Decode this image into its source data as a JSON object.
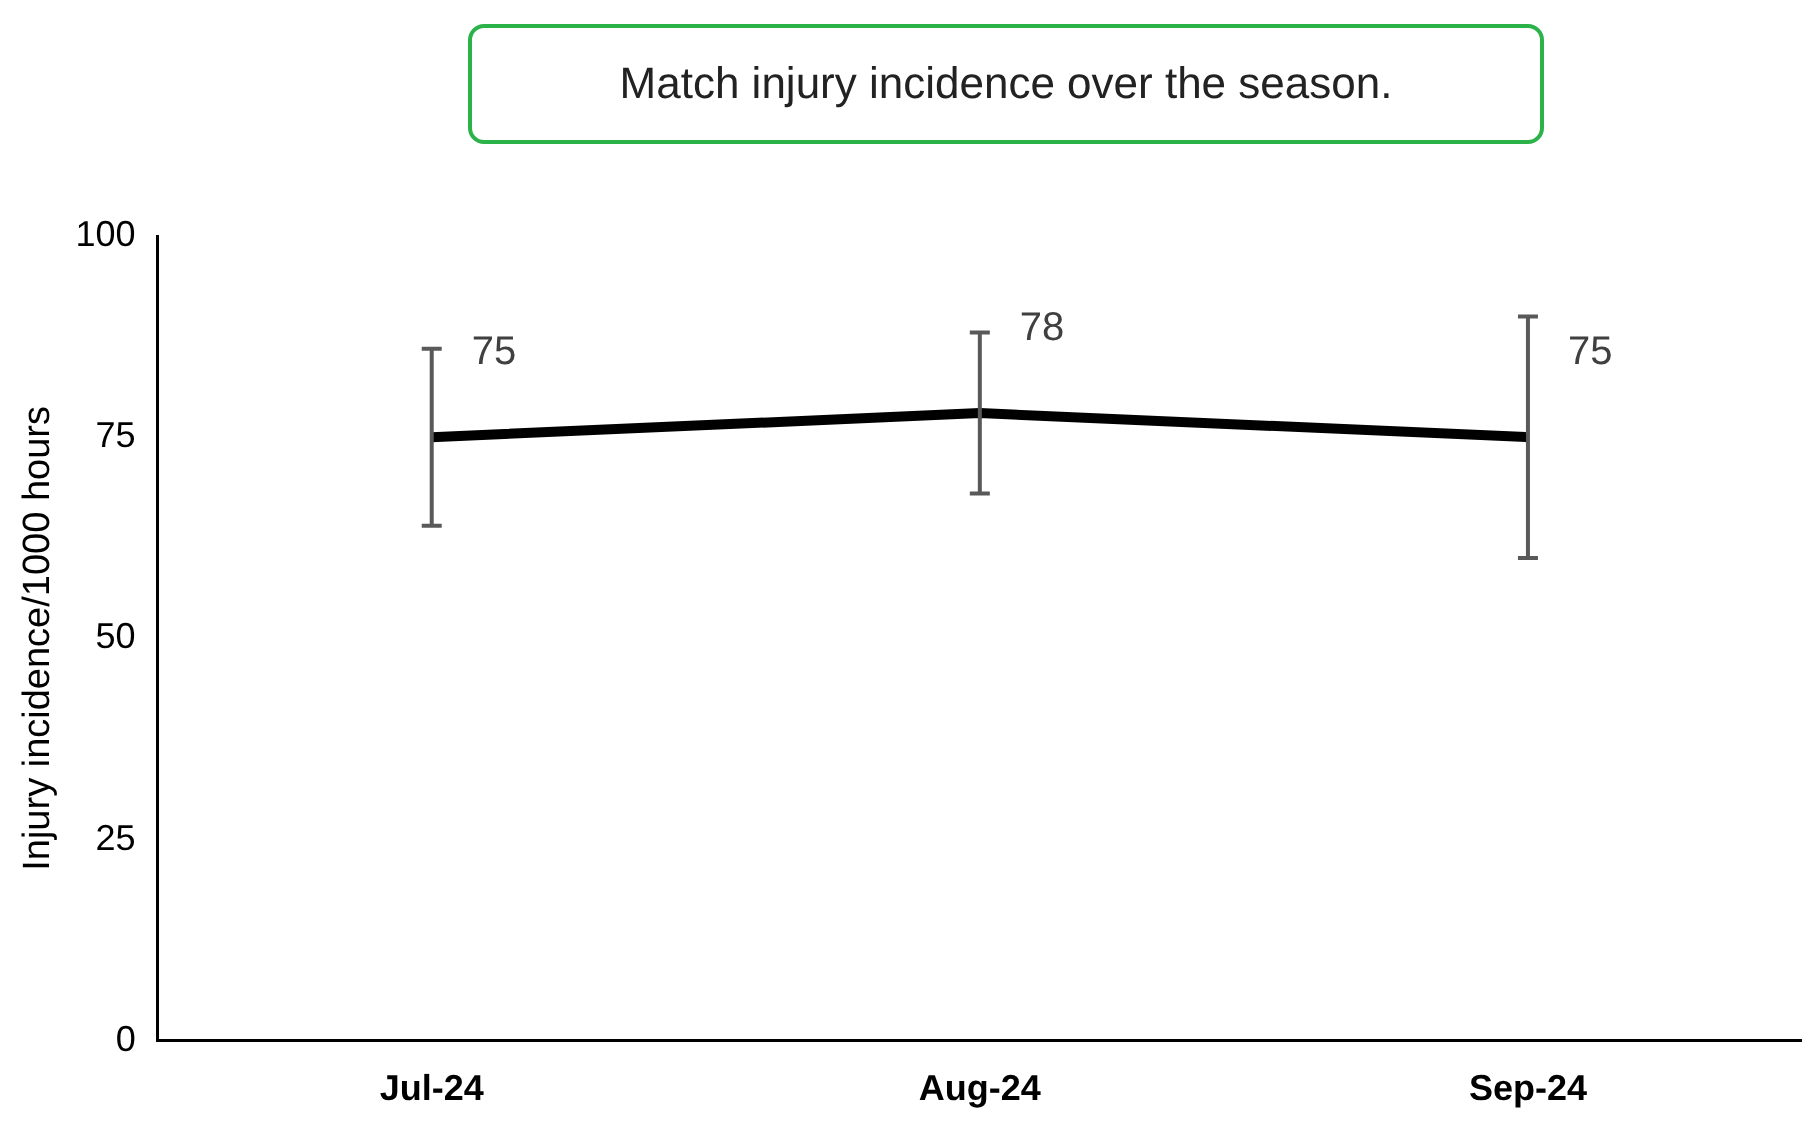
{
  "chart_data": {
    "type": "line",
    "title": "Match injury incidence over the season.",
    "ylabel": "Injury incidence/1000 hours",
    "categories": [
      "Jul-24",
      "Aug-24",
      "Sep-24"
    ],
    "values": [
      75,
      78,
      75
    ],
    "errors": [
      [
        64,
        86
      ],
      [
        68,
        88
      ],
      [
        60,
        90
      ]
    ],
    "color": "#000000",
    "ylim": [
      0,
      100
    ],
    "yticks": [
      0,
      25,
      50,
      75,
      100
    ],
    "grid": false,
    "legend": false,
    "marker": "none",
    "line_style": "solid",
    "data_labels": true
  }
}
